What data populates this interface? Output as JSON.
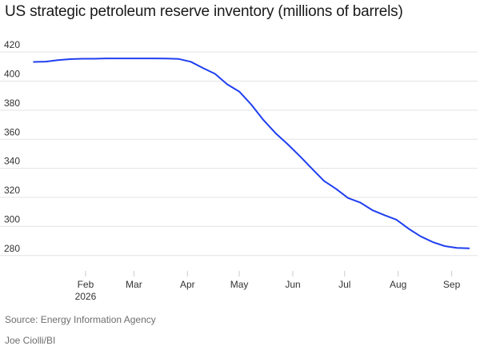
{
  "chart_data": {
    "type": "line",
    "title": "US strategic petroleum reserve inventory (millions of barrels)",
    "source": "Source: Energy Information Agency",
    "credit": "Joe Ciolli/BI",
    "line_color": "#1f3ff0",
    "xlim": [
      "2026-01-01",
      "2026-09-16"
    ],
    "ylim": [
      270,
      425
    ],
    "yticks": [
      280,
      300,
      320,
      340,
      360,
      380,
      400,
      420
    ],
    "xticks": [
      {
        "date": "2026-02-01",
        "label": "Feb",
        "sublabel": "2026"
      },
      {
        "date": "2026-03-01",
        "label": "Mar",
        "sublabel": ""
      },
      {
        "date": "2026-04-01",
        "label": "Apr",
        "sublabel": ""
      },
      {
        "date": "2026-05-01",
        "label": "May",
        "sublabel": ""
      },
      {
        "date": "2026-06-01",
        "label": "Jun",
        "sublabel": ""
      },
      {
        "date": "2026-07-01",
        "label": "Jul",
        "sublabel": ""
      },
      {
        "date": "2026-08-01",
        "label": "Aug",
        "sublabel": ""
      },
      {
        "date": "2026-09-01",
        "label": "Sep",
        "sublabel": ""
      }
    ],
    "grid": true,
    "series": [
      {
        "x": [
          "2026-01-02",
          "2026-01-09",
          "2026-01-16",
          "2026-01-23",
          "2026-01-30",
          "2026-02-06",
          "2026-02-13",
          "2026-02-20",
          "2026-02-27",
          "2026-03-06",
          "2026-03-13",
          "2026-03-20",
          "2026-03-27",
          "2026-04-03",
          "2026-04-10",
          "2026-04-17",
          "2026-04-24",
          "2026-05-01",
          "2026-05-08",
          "2026-05-15",
          "2026-05-22",
          "2026-05-29",
          "2026-06-05",
          "2026-06-12",
          "2026-06-19",
          "2026-06-26",
          "2026-07-03",
          "2026-07-10",
          "2026-07-17",
          "2026-07-24",
          "2026-07-31",
          "2026-08-07",
          "2026-08-14",
          "2026-08-21",
          "2026-08-28",
          "2026-09-04",
          "2026-09-11"
        ],
        "values": [
          413.2,
          413.4,
          414.4,
          415.1,
          415.4,
          415.4,
          415.6,
          415.6,
          415.6,
          415.6,
          415.6,
          415.5,
          415.2,
          413.3,
          409.0,
          405.0,
          397.8,
          392.8,
          383.8,
          373.2,
          364.2,
          356.6,
          348.5,
          339.9,
          331.4,
          325.9,
          319.6,
          316.5,
          311.3,
          307.8,
          304.7,
          298.5,
          293.2,
          289.3,
          286.5,
          285.3,
          285.0
        ]
      }
    ]
  }
}
